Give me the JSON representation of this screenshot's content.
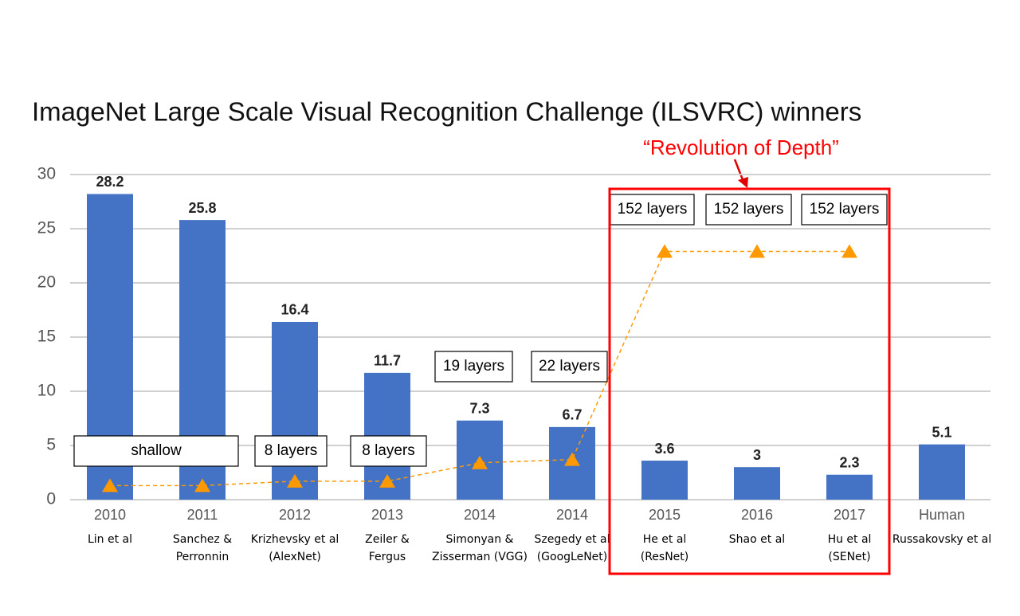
{
  "chart_data": {
    "type": "bar",
    "title": "ImageNet Large Scale Visual Recognition Challenge (ILSVRC) winners",
    "annotation": "“Revolution of Depth”",
    "categories": [
      "2010",
      "2011",
      "2012",
      "2013",
      "2014",
      "2014",
      "2015",
      "2016",
      "2017",
      "Human"
    ],
    "authors": [
      [
        "Lin et al"
      ],
      [
        "Sanchez &",
        "Perronnin"
      ],
      [
        "Krizhevsky et al",
        "(AlexNet)"
      ],
      [
        "Zeiler &",
        "Fergus"
      ],
      [
        "Simonyan &",
        "Zisserman (VGG)"
      ],
      [
        "Szegedy et al",
        "(GoogLeNet)"
      ],
      [
        "He et al",
        "(ResNet)"
      ],
      [
        "Shao et al"
      ],
      [
        "Hu et al",
        "(SENet)"
      ],
      [
        "Russakovsky et al"
      ]
    ],
    "values": [
      28.2,
      25.8,
      16.4,
      11.7,
      7.3,
      6.7,
      3.6,
      3,
      2.3,
      5.1
    ],
    "color": "#4472c4",
    "depth_labels": [
      "shallow",
      null,
      "8 layers",
      "8 layers",
      "19 layers",
      "22 layers",
      "152 layers",
      "152 layers",
      "152 layers",
      null
    ],
    "depth_markers": {
      "color": "#ff9900",
      "values": [
        1.3,
        1.3,
        1.7,
        1.7,
        3.4,
        3.7,
        22.9,
        22.9,
        22.9,
        null
      ]
    },
    "ylim": [
      0,
      30
    ],
    "yticks": [
      0,
      5,
      10,
      15,
      20,
      25,
      30
    ],
    "grid": true
  }
}
